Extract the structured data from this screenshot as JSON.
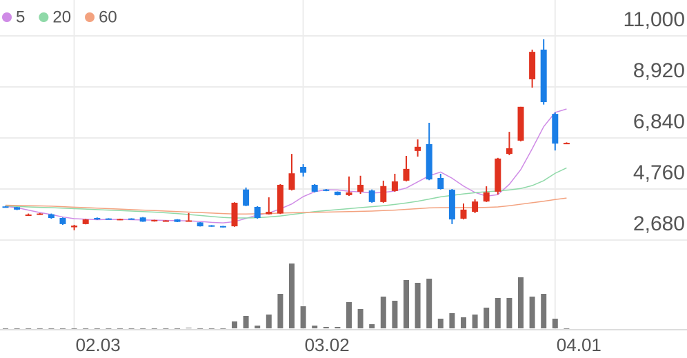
{
  "chart_data": [
    {
      "type": "candlestick",
      "categories": [
        null,
        null,
        null,
        null,
        null,
        null,
        "02.03",
        null,
        null,
        null,
        null,
        null,
        null,
        null,
        null,
        null,
        null,
        null,
        null,
        null,
        null,
        null,
        null,
        null,
        null,
        null,
        "03.02",
        null,
        null,
        null,
        null,
        null,
        null,
        null,
        null,
        null,
        null,
        null,
        null,
        null,
        null,
        null,
        null,
        null,
        null,
        null,
        null,
        null,
        "04.01",
        null
      ],
      "open": [
        4050,
        4020,
        3700,
        3720,
        3730,
        3580,
        3200,
        3330,
        3580,
        3560,
        3500,
        3560,
        3600,
        3440,
        3460,
        3520,
        3450,
        3400,
        3280,
        3250,
        3240,
        4740,
        4030,
        3730,
        3760,
        4730,
        5660,
        4930,
        4740,
        4650,
        4510,
        4650,
        4700,
        4230,
        4680,
        5100,
        6310,
        6590,
        5210,
        4730,
        3550,
        3830,
        4250,
        4650,
        6190,
        6730,
        9230,
        10440,
        7820,
        6620
      ],
      "high": [
        4070,
        4030,
        3760,
        3780,
        3760,
        3600,
        3300,
        3540,
        3600,
        3570,
        3550,
        3570,
        3620,
        3510,
        3490,
        3530,
        3780,
        3410,
        3290,
        3260,
        4220,
        4820,
        4060,
        4420,
        4960,
        6190,
        5770,
        4960,
        4760,
        4660,
        5270,
        5300,
        4740,
        5100,
        5380,
        6110,
        6780,
        7460,
        5380,
        4760,
        4170,
        4340,
        4870,
        6030,
        7090,
        8110,
        10440,
        10860,
        7880,
        6660
      ],
      "low": [
        4000,
        3900,
        3660,
        3700,
        3550,
        3300,
        3080,
        3320,
        3500,
        3510,
        3490,
        3510,
        3420,
        3430,
        3450,
        3410,
        3440,
        3230,
        3220,
        3190,
        3220,
        4060,
        3550,
        3720,
        3740,
        4700,
        5270,
        4620,
        4670,
        4500,
        4480,
        4560,
        4200,
        4200,
        4650,
        5070,
        6080,
        5120,
        4740,
        3330,
        3520,
        3780,
        4230,
        4540,
        6140,
        6700,
        8890,
        8200,
        6330,
        6600
      ],
      "close": [
        4000,
        3920,
        3720,
        3760,
        3580,
        3330,
        3270,
        3520,
        3520,
        3520,
        3540,
        3520,
        3430,
        3500,
        3480,
        3420,
        3480,
        3240,
        3230,
        3200,
        4200,
        4080,
        3580,
        3830,
        4930,
        5400,
        5420,
        4650,
        4680,
        4510,
        4620,
        4930,
        4230,
        4880,
        5070,
        5580,
        6480,
        5150,
        4760,
        3520,
        3920,
        4250,
        4620,
        6000,
        6420,
        8110,
        10350,
        8300,
        6610,
        6640
      ],
      "up_color": "#e0321f",
      "down_color": "#1a7ee6",
      "series": [
        {
          "name": "5",
          "color": "#cf8be6",
          "values": [
            4050,
            4000,
            3900,
            3800,
            3720,
            3620,
            3550,
            3530,
            3510,
            3520,
            3520,
            3510,
            3500,
            3490,
            3480,
            3470,
            3460,
            3440,
            3400,
            3380,
            3430,
            3560,
            3700,
            3780,
            3950,
            4150,
            4450,
            4650,
            4730,
            4720,
            4670,
            4640,
            4600,
            4620,
            4680,
            4800,
            5050,
            5300,
            5450,
            5200,
            4880,
            4620,
            4470,
            4530,
            4950,
            5550,
            6400,
            7300,
            7880,
            8020
          ]
        },
        {
          "name": "20",
          "color": "#8fd9a8",
          "values": [
            4070,
            4050,
            4030,
            4010,
            4000,
            3980,
            3960,
            3940,
            3920,
            3900,
            3880,
            3860,
            3840,
            3820,
            3790,
            3760,
            3720,
            3680,
            3640,
            3600,
            3580,
            3580,
            3590,
            3620,
            3660,
            3720,
            3780,
            3840,
            3880,
            3920,
            3960,
            4000,
            4040,
            4080,
            4130,
            4190,
            4260,
            4350,
            4440,
            4500,
            4560,
            4610,
            4650,
            4680,
            4720,
            4780,
            4900,
            5100,
            5400,
            5620
          ]
        },
        {
          "name": "60",
          "color": "#f3a27f",
          "values": [
            4100,
            4090,
            4080,
            4070,
            4060,
            4040,
            4020,
            4000,
            3980,
            3960,
            3940,
            3920,
            3900,
            3880,
            3860,
            3840,
            3820,
            3800,
            3780,
            3760,
            3740,
            3740,
            3750,
            3760,
            3780,
            3790,
            3800,
            3810,
            3820,
            3830,
            3840,
            3850,
            3860,
            3880,
            3900,
            3930,
            3960,
            3990,
            4000,
            4000,
            4000,
            4000,
            4010,
            4030,
            4080,
            4140,
            4200,
            4260,
            4330,
            4390
          ]
        }
      ],
      "ylim": [
        2680,
        11000
      ],
      "yticks": [
        {
          "value": 2680,
          "label": "2,680"
        },
        {
          "value": 4760,
          "label": "4,760"
        },
        {
          "value": 6840,
          "label": "6,840"
        },
        {
          "value": 8920,
          "label": "8,920"
        },
        {
          "value": 11000,
          "label": "11,000"
        }
      ],
      "grid": true
    },
    {
      "type": "bar",
      "color": "#777777",
      "ylim": [
        0,
        100
      ],
      "values": [
        0,
        0,
        0,
        0,
        0,
        0,
        0,
        0,
        0,
        0,
        0,
        0,
        0,
        0,
        0,
        0,
        1,
        0,
        0,
        0,
        10,
        18,
        4,
        20,
        50,
        94,
        32,
        4,
        2,
        2,
        38,
        28,
        6,
        46,
        40,
        70,
        66,
        72,
        14,
        22,
        16,
        20,
        30,
        44,
        44,
        74,
        46,
        50,
        14,
        0
      ]
    }
  ]
}
